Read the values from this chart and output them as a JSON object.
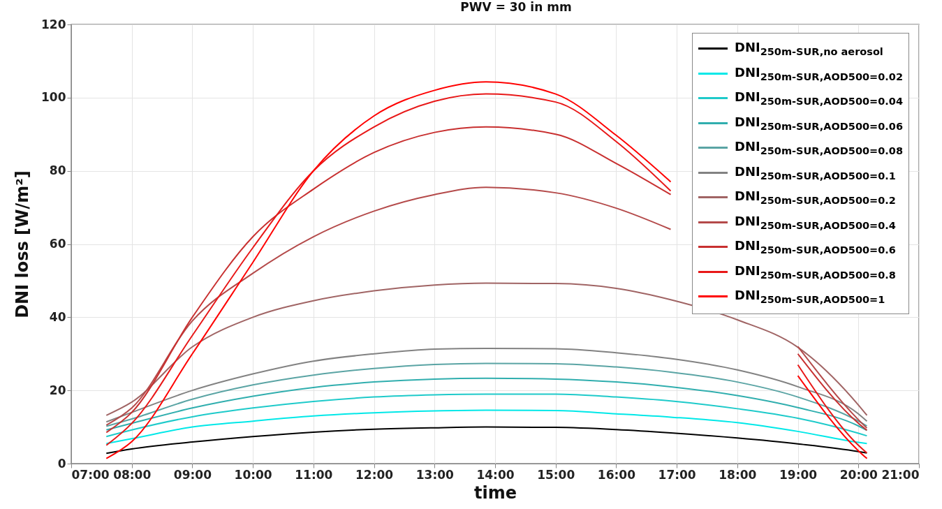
{
  "chart_data": {
    "type": "line",
    "title": "PWV = 30 in mm",
    "xlabel": "time",
    "ylabel": "DNI loss [W/m²]",
    "x": [
      7.58,
      8,
      9,
      10,
      11,
      12,
      13,
      13.85,
      15,
      16,
      16.9,
      18,
      19,
      20,
      20.14
    ],
    "xlim": [
      7,
      21
    ],
    "xticks": [
      {
        "value": 7,
        "label": "07:00"
      },
      {
        "value": 8,
        "label": "08:00"
      },
      {
        "value": 9,
        "label": "09:00"
      },
      {
        "value": 10,
        "label": "10:00"
      },
      {
        "value": 11,
        "label": "11:00"
      },
      {
        "value": 12,
        "label": "12:00"
      },
      {
        "value": 13,
        "label": "13:00"
      },
      {
        "value": 14,
        "label": "14:00"
      },
      {
        "value": 15,
        "label": "15:00"
      },
      {
        "value": 16,
        "label": "16:00"
      },
      {
        "value": 17,
        "label": "17:00"
      },
      {
        "value": 18,
        "label": "18:00"
      },
      {
        "value": 19,
        "label": "19:00"
      },
      {
        "value": 20,
        "label": "20:00"
      },
      {
        "value": 21,
        "label": "21:00"
      }
    ],
    "ylim": [
      0,
      120
    ],
    "yticks": [
      0,
      20,
      40,
      60,
      80,
      100,
      120
    ],
    "grid": true,
    "legend": "top right",
    "line_style": "solid",
    "marker": "none",
    "series": [
      {
        "name": "DNI$_{250m-SUR,no aerosol}$",
        "color": "#000000",
        "values": [
          2.8,
          4.0,
          5.9,
          7.4,
          8.6,
          9.4,
          9.8,
          10,
          9.9,
          9.3,
          8.4,
          7,
          5.4,
          3.3,
          2.9
        ]
      },
      {
        "name": "DNI$_{250m-SUR,AOD500=0.02}$",
        "color": "#00e8e8",
        "values": [
          5.5,
          6.8,
          10,
          11.6,
          13,
          13.9,
          14.4,
          14.6,
          14.5,
          13.6,
          12.7,
          11.2,
          8.8,
          5.8,
          5.5
        ]
      },
      {
        "name": "DNI$_{250m-SUR,AOD500=0.04}$",
        "color": "#1ecaca",
        "values": [
          7.4,
          9.2,
          12.8,
          15.2,
          17,
          18.2,
          18.8,
          19,
          19,
          18.2,
          17.1,
          15,
          12.4,
          8.3,
          7.6
        ]
      },
      {
        "name": "DNI$_{250m-SUR,AOD500=0.06}$",
        "color": "#30aeae",
        "values": [
          9.2,
          11,
          15.2,
          18.4,
          20.8,
          22.3,
          23.1,
          23.3,
          23.1,
          22.3,
          21,
          18.6,
          15.3,
          10.3,
          9.1
        ]
      },
      {
        "name": "DNI$_{250m-SUR,AOD500=0.08}$",
        "color": "#5aa4a4",
        "values": [
          10.2,
          12.2,
          17.6,
          21.5,
          24.2,
          26,
          27.1,
          27.4,
          27.3,
          26.4,
          25,
          22.3,
          18.2,
          11.6,
          10.3
        ]
      },
      {
        "name": "DNI$_{250m-SUR,AOD500=0.1}$",
        "color": "#828282",
        "values": [
          11.4,
          14,
          20,
          24.5,
          28,
          30,
          31.3,
          31.5,
          31.4,
          30.3,
          28.7,
          25.6,
          21,
          13.6,
          11.6
        ]
      },
      {
        "name": "DNI$_{250m-SUR,AOD500=0.2}$",
        "color": "#a06464",
        "values": [
          13.2,
          16.8,
          31.9,
          40,
          44.5,
          47.2,
          48.8,
          49.3,
          49.2,
          47.9,
          44.8,
          39.3,
          31.8,
          16,
          13.2
        ]
      },
      {
        "name": "DNI$_{250m-SUR,AOD500=0.4}$",
        "color": "#b44a4a",
        "values": [
          10.5,
          15.2,
          39,
          52,
          62,
          69,
          73.5,
          75.5,
          74,
          69.8,
          64,
          null,
          32,
          12,
          9.7
        ]
      },
      {
        "name": "DNI$_{250m-SUR,AOD500=0.6}$",
        "color": "#c83030",
        "values": [
          8.5,
          14,
          40,
          62,
          75,
          85,
          90.5,
          92,
          90,
          82,
          73.5,
          null,
          30,
          11,
          9.1
        ]
      },
      {
        "name": "DNI$_{250m-SUR,AOD500=0.8}$",
        "color": "#e81818",
        "values": [
          5,
          11,
          35,
          59,
          80,
          92,
          99,
          101,
          98.8,
          88,
          74.5,
          null,
          27,
          5,
          2.9
        ]
      },
      {
        "name": "DNI$_{250m-SUR,AOD500=1}$",
        "color": "#ff0000",
        "values": [
          1.4,
          6,
          30,
          55,
          80,
          95,
          102,
          104.3,
          101,
          89.7,
          77,
          null,
          24,
          3.5,
          1.4
        ]
      }
    ]
  }
}
